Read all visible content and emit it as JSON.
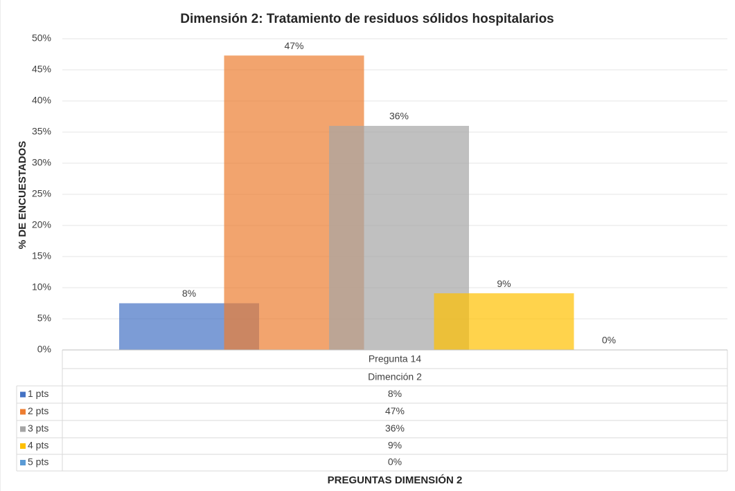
{
  "chart_data": {
    "type": "bar",
    "title": "Dimensión 2: Tratamiento de residuos sólidos hospitalarios",
    "y_label": "% DE ENCUESTADOS",
    "x_label": "PREGUNTAS DIMENSIÓN 2",
    "categories": [
      "Pregunta 14"
    ],
    "group_label": "Dimención 2",
    "series": [
      {
        "name": "1 pts",
        "color": "#4472c4",
        "values": [
          7.5
        ],
        "value_labels": [
          "8%"
        ]
      },
      {
        "name": "2 pts",
        "color": "#ed7d31",
        "values": [
          47.3
        ],
        "value_labels": [
          "47%"
        ]
      },
      {
        "name": "3 pts",
        "color": "#a5a5a5",
        "values": [
          36
        ],
        "value_labels": [
          "36%"
        ]
      },
      {
        "name": "4 pts",
        "color": "#ffc000",
        "values": [
          9.1
        ],
        "value_labels": [
          "9%"
        ]
      },
      {
        "name": "5 pts",
        "color": "#5b9bd5",
        "values": [
          0
        ],
        "value_labels": [
          "0%"
        ]
      }
    ],
    "ylim": [
      0,
      50
    ],
    "yticks": [
      {
        "value": 0,
        "label": "0%"
      },
      {
        "value": 5,
        "label": "5%"
      },
      {
        "value": 10,
        "label": "10%"
      },
      {
        "value": 15,
        "label": "15%"
      },
      {
        "value": 20,
        "label": "20%"
      },
      {
        "value": 25,
        "label": "25%"
      },
      {
        "value": 30,
        "label": "30%"
      },
      {
        "value": 35,
        "label": "35%"
      },
      {
        "value": 40,
        "label": "40%"
      },
      {
        "value": 45,
        "label": "45%"
      },
      {
        "value": 50,
        "label": "50%"
      }
    ],
    "grid": true
  }
}
